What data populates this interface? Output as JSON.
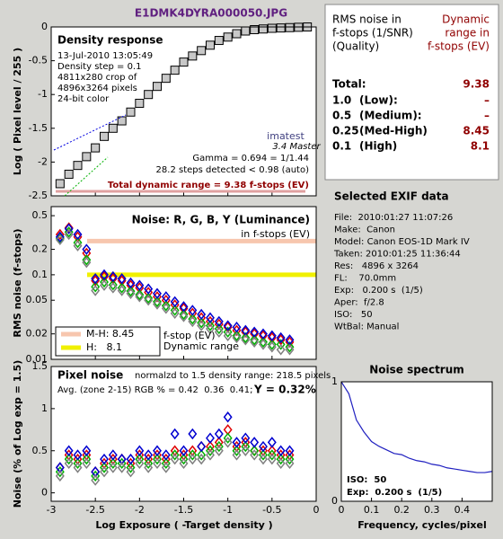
{
  "window_title": "E1DMK4DYRA000050.JPG",
  "x_axis_label": "Log Exposure ( -Target density )",
  "chart_data": [
    {
      "type": "scatter",
      "title": "Density response",
      "ylabel": "Log ( Pixel level / 255 )",
      "info": [
        "13-Jul-2010 13:05:49",
        "Density step = 0.1",
        "4811x280 crop of",
        "4896x3264 pixels",
        "24-bit color"
      ],
      "logo": "imatest",
      "logo_sub": "3.4 Master",
      "fit_notes": [
        "Gamma = 0.694 = 1/1.44",
        "28.2 steps detected < 0.98 (auto)"
      ],
      "dynamic_range_label": "Total dynamic range = 9.38 f-stops (EV)",
      "marker": "square",
      "color": "#c8c8c8",
      "x": [
        -2.9,
        -2.8,
        -2.7,
        -2.6,
        -2.5,
        -2.4,
        -2.3,
        -2.2,
        -2.1,
        -2.0,
        -1.9,
        -1.8,
        -1.7,
        -1.6,
        -1.5,
        -1.4,
        -1.3,
        -1.2,
        -1.1,
        -1.0,
        -0.9,
        -0.8,
        -0.7,
        -0.6,
        -0.5,
        -0.4,
        -0.3,
        -0.2,
        -0.1
      ],
      "values": [
        -2.32,
        -2.18,
        -2.05,
        -1.92,
        -1.79,
        -1.62,
        -1.5,
        -1.39,
        -1.26,
        -1.13,
        -1.0,
        -0.88,
        -0.76,
        -0.64,
        -0.52,
        -0.43,
        -0.35,
        -0.27,
        -0.2,
        -0.15,
        -0.1,
        -0.06,
        -0.04,
        -0.03,
        -0.02,
        -0.015,
        -0.01,
        -0.005,
        0
      ],
      "xlim": [
        -3,
        0
      ],
      "ylim": [
        -2.5,
        0
      ],
      "yticks": [
        -2.5,
        -2,
        -1.5,
        -1,
        -0.5,
        0
      ]
    },
    {
      "type": "scatter",
      "title": "Noise: R, G, B, Y (Luminance)",
      "subtitle": "in f-stops (EV)",
      "ylabel": "RMS noise (f-stops)",
      "log_y": true,
      "marker": "diamond",
      "legend_items": [
        "M-H: 8.45",
        "H:   8.1"
      ],
      "legend_notes": [
        "f-stop (EV)",
        "Dynamic range"
      ],
      "bands": [
        {
          "value": 0.25,
          "color": "#f7c6ae"
        },
        {
          "value": 0.1,
          "color": "#f0f000"
        }
      ],
      "x": [
        -2.9,
        -2.8,
        -2.7,
        -2.6,
        -2.5,
        -2.4,
        -2.3,
        -2.2,
        -2.1,
        -2.0,
        -1.9,
        -1.8,
        -1.7,
        -1.6,
        -1.5,
        -1.4,
        -1.3,
        -1.2,
        -1.1,
        -1.0,
        -0.9,
        -0.8,
        -0.7,
        -0.6,
        -0.5,
        -0.4,
        -0.3
      ],
      "series": [
        {
          "color": "#e00000",
          "values": [
            0.3,
            0.36,
            0.28,
            0.18,
            0.085,
            0.095,
            0.09,
            0.085,
            0.075,
            0.07,
            0.062,
            0.055,
            0.05,
            0.044,
            0.04,
            0.035,
            0.031,
            0.028,
            0.026,
            0.024,
            0.022,
            0.021,
            0.02,
            0.019,
            0.018,
            0.017,
            0.016
          ]
        },
        {
          "color": "#00b000",
          "values": [
            0.27,
            0.32,
            0.24,
            0.15,
            0.072,
            0.082,
            0.076,
            0.07,
            0.064,
            0.058,
            0.053,
            0.048,
            0.043,
            0.038,
            0.034,
            0.03,
            0.027,
            0.025,
            0.023,
            0.021,
            0.019,
            0.018,
            0.017,
            0.016,
            0.015,
            0.015,
            0.014
          ]
        },
        {
          "color": "#0000d0",
          "values": [
            0.28,
            0.35,
            0.3,
            0.2,
            0.09,
            0.1,
            0.095,
            0.09,
            0.08,
            0.075,
            0.068,
            0.06,
            0.055,
            0.048,
            0.042,
            0.038,
            0.034,
            0.031,
            0.028,
            0.025,
            0.024,
            0.022,
            0.021,
            0.02,
            0.019,
            0.018,
            0.017
          ]
        },
        {
          "color": "#808080",
          "values": [
            0.26,
            0.3,
            0.22,
            0.14,
            0.065,
            0.075,
            0.07,
            0.065,
            0.06,
            0.055,
            0.05,
            0.045,
            0.04,
            0.035,
            0.032,
            0.028,
            0.025,
            0.023,
            0.021,
            0.019,
            0.018,
            0.017,
            0.016,
            0.015,
            0.014,
            0.013,
            0.013
          ]
        }
      ],
      "xlim": [
        -3,
        0
      ],
      "ylim": [
        0.01,
        0.64
      ],
      "yticks": [
        0.01,
        0.02,
        0.05,
        0.1,
        0.2,
        0.5
      ]
    },
    {
      "type": "scatter",
      "title": "Pixel noise",
      "subtitle": "normalzd to 1.5 density range: 218.5 pixels",
      "avg_note": "Avg. (zone 2-15) RGB % = 0.42  0.36  0.41;",
      "y_note": "Y = 0.32%",
      "ylabel": "Noise (% of Log exp = 1.5)",
      "marker": "diamond",
      "x": [
        -2.9,
        -2.8,
        -2.7,
        -2.6,
        -2.5,
        -2.4,
        -2.3,
        -2.2,
        -2.1,
        -2.0,
        -1.9,
        -1.8,
        -1.7,
        -1.6,
        -1.5,
        -1.4,
        -1.3,
        -1.2,
        -1.1,
        -1.0,
        -0.9,
        -0.8,
        -0.7,
        -0.6,
        -0.5,
        -0.4,
        -0.3
      ],
      "series": [
        {
          "color": "#e00000",
          "values": [
            0.3,
            0.45,
            0.4,
            0.45,
            0.25,
            0.35,
            0.4,
            0.4,
            0.35,
            0.45,
            0.4,
            0.45,
            0.4,
            0.5,
            0.45,
            0.5,
            0.55,
            0.55,
            0.6,
            0.75,
            0.55,
            0.6,
            0.5,
            0.5,
            0.5,
            0.45,
            0.45
          ]
        },
        {
          "color": "#00b000",
          "values": [
            0.25,
            0.4,
            0.35,
            0.4,
            0.2,
            0.3,
            0.35,
            0.35,
            0.3,
            0.4,
            0.35,
            0.4,
            0.35,
            0.45,
            0.4,
            0.45,
            0.45,
            0.5,
            0.55,
            0.65,
            0.5,
            0.55,
            0.5,
            0.45,
            0.45,
            0.4,
            0.4
          ]
        },
        {
          "color": "#0000d0",
          "values": [
            0.3,
            0.5,
            0.45,
            0.5,
            0.25,
            0.4,
            0.45,
            0.4,
            0.4,
            0.5,
            0.45,
            0.5,
            0.45,
            0.7,
            0.5,
            0.7,
            0.55,
            0.65,
            0.7,
            0.9,
            0.6,
            0.65,
            0.6,
            0.55,
            0.6,
            0.5,
            0.5
          ]
        },
        {
          "color": "#808080",
          "values": [
            0.2,
            0.35,
            0.3,
            0.35,
            0.15,
            0.25,
            0.3,
            0.3,
            0.25,
            0.35,
            0.3,
            0.35,
            0.3,
            0.4,
            0.35,
            0.4,
            0.4,
            0.45,
            0.5,
            0.6,
            0.45,
            0.5,
            0.45,
            0.4,
            0.4,
            0.35,
            0.35
          ]
        }
      ],
      "xlim": [
        -3,
        0
      ],
      "xticks": [
        -3,
        -2.5,
        -2,
        -1.5,
        -1,
        -0.5,
        0
      ],
      "ylim": [
        -0.1,
        1.5
      ],
      "yticks": [
        0,
        0.5,
        1,
        1.5
      ]
    },
    {
      "type": "line",
      "title": "Noise spectrum",
      "xlabel": "Frequency, cycles/pixel",
      "color": "#2020c0",
      "notes": [
        "ISO:  50",
        "Exp:  0.200 s  (1/5)"
      ],
      "x": [
        0,
        0.025,
        0.05,
        0.075,
        0.1,
        0.125,
        0.15,
        0.175,
        0.2,
        0.225,
        0.25,
        0.275,
        0.3,
        0.325,
        0.35,
        0.375,
        0.4,
        0.425,
        0.45,
        0.475,
        0.5
      ],
      "values": [
        1,
        0.9,
        0.68,
        0.58,
        0.5,
        0.46,
        0.43,
        0.4,
        0.39,
        0.36,
        0.34,
        0.33,
        0.31,
        0.3,
        0.28,
        0.27,
        0.26,
        0.25,
        0.24,
        0.24,
        0.25
      ],
      "xlim": [
        0,
        0.5
      ],
      "xticks": [
        0,
        0.1,
        0.2,
        0.3,
        0.4
      ],
      "ylim": [
        0,
        1
      ],
      "yticks": [
        0,
        1
      ]
    }
  ],
  "summary_table": {
    "left_header": [
      "RMS noise in",
      "f-stops (1/SNR)",
      "(Quality)"
    ],
    "right_header": [
      "Dynamic",
      "range in",
      "f-stops (EV)"
    ],
    "total": [
      "Total:",
      "9.38"
    ],
    "rows": [
      [
        "1.0",
        "(Low):",
        "–"
      ],
      [
        "0.5",
        "(Medium):",
        "–"
      ],
      [
        "0.25",
        "(Med-High)",
        "8.45"
      ],
      [
        "0.1",
        "(High)",
        "8.1"
      ]
    ]
  },
  "exif": {
    "title": "Selected EXIF data",
    "lines": [
      "File:  2010:01:27 11:07:26",
      "Make:  Canon",
      "Model: Canon EOS-1D Mark IV",
      "Taken: 2010:01:25 11:36:44",
      "Res:   4896 x 3264",
      "FL:    70.0mm",
      "Exp:   0.200 s  (1/5)",
      "Aper:  f/2.8",
      "ISO:   50",
      "WtBal: Manual"
    ]
  }
}
